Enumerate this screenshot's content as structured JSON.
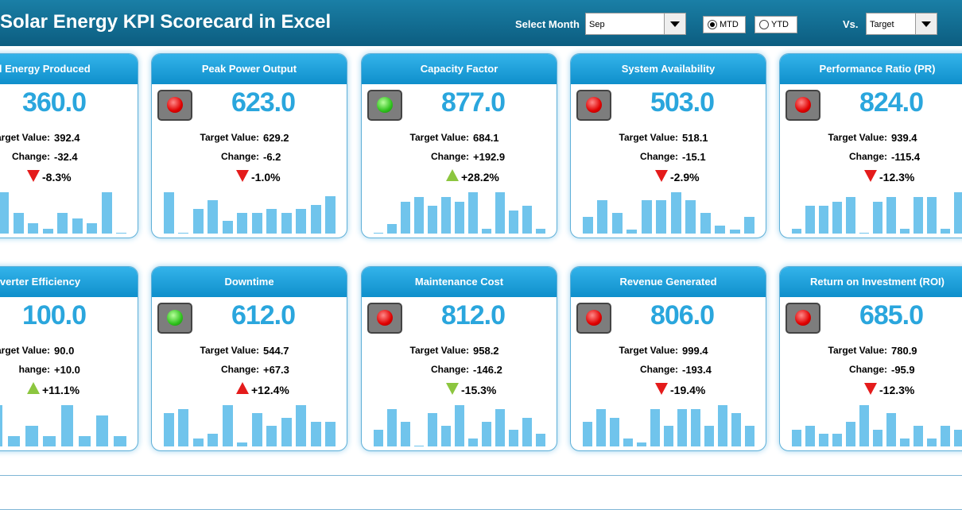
{
  "header": {
    "title": "Solar Energy KPI Scorecard in Excel",
    "month_label": "Select Month",
    "month_value": "Sep",
    "mtd": "MTD",
    "ytd": "YTD",
    "vs_label": "Vs.",
    "vs_value": "Target",
    "selected": "mtd"
  },
  "cards": [
    {
      "title": "tal Energy Produced",
      "light": null,
      "value": "360.0",
      "target_label": "arget Value:",
      "target": "392.4",
      "change_label": "Change:",
      "change": "-32.4",
      "pct": "-8.3%",
      "arrow": "down",
      "arrow_color": "#e41b1b",
      "spark": [
        5,
        8,
        3,
        8,
        4,
        2,
        1,
        4,
        3,
        2,
        8,
        0
      ]
    },
    {
      "title": "Peak Power Output",
      "light": "red",
      "value": "623.0",
      "target_label": "Target Value:",
      "target": "629.2",
      "change_label": "Change:",
      "change": "-6.2",
      "pct": "-1.0%",
      "arrow": "down",
      "arrow_color": "#e41b1b",
      "spark": [
        10,
        0,
        6,
        8,
        3,
        5,
        5,
        6,
        5,
        6,
        7,
        9
      ]
    },
    {
      "title": "Capacity Factor",
      "light": "green",
      "value": "877.0",
      "target_label": "Target Value:",
      "target": "684.1",
      "change_label": "Change:",
      "change": "+192.9",
      "pct": "+28.2%",
      "arrow": "up",
      "arrow_color": "#8cc63f",
      "spark": [
        0,
        2,
        7,
        8,
        6,
        8,
        7,
        9,
        1,
        9,
        5,
        6,
        1
      ]
    },
    {
      "title": "System Availability",
      "light": "red",
      "value": "503.0",
      "target_label": "Target Value:",
      "target": "518.1",
      "change_label": "Change:",
      "change": "-15.1",
      "pct": "-2.9%",
      "arrow": "down",
      "arrow_color": "#e41b1b",
      "spark": [
        4,
        8,
        5,
        1,
        8,
        8,
        10,
        8,
        5,
        2,
        1,
        4
      ]
    },
    {
      "title": "Performance Ratio (PR)",
      "light": "red",
      "value": "824.0",
      "target_label": "Target Value:",
      "target": "939.4",
      "change_label": "Change:",
      "change": "-115.4",
      "pct": "-12.3%",
      "arrow": "down",
      "arrow_color": "#e41b1b",
      "spark": [
        1,
        6,
        6,
        7,
        8,
        0,
        7,
        8,
        1,
        8,
        8,
        1,
        9
      ]
    },
    {
      "title": "verter Efficiency",
      "light": null,
      "value": "100.0",
      "target_label": "arget Value:",
      "target": "90.0",
      "change_label": "hange:",
      "change": "+10.0",
      "pct": "+11.1%",
      "arrow": "up",
      "arrow_color": "#8cc63f",
      "spark": [
        3,
        8,
        8,
        2,
        4,
        2,
        8,
        2,
        6,
        2
      ]
    },
    {
      "title": "Downtime",
      "light": "green",
      "value": "612.0",
      "target_label": "Target Value:",
      "target": "544.7",
      "change_label": "Change:",
      "change": "+67.3",
      "pct": "+12.4%",
      "arrow": "up",
      "arrow_color": "#e41b1b",
      "spark": [
        8,
        9,
        2,
        3,
        10,
        1,
        8,
        5,
        7,
        10,
        6,
        6
      ]
    },
    {
      "title": "Maintenance Cost",
      "light": "red",
      "value": "812.0",
      "target_label": "Target Value:",
      "target": "958.2",
      "change_label": "Change:",
      "change": "-146.2",
      "pct": "-15.3%",
      "arrow": "down",
      "arrow_color": "#8cc63f",
      "spark": [
        4,
        9,
        6,
        0,
        8,
        5,
        10,
        2,
        6,
        9,
        4,
        7,
        3
      ]
    },
    {
      "title": "Revenue Generated",
      "light": "red",
      "value": "806.0",
      "target_label": "Target Value:",
      "target": "999.4",
      "change_label": "Change:",
      "change": "-193.4",
      "pct": "-19.4%",
      "arrow": "down",
      "arrow_color": "#e41b1b",
      "spark": [
        6,
        9,
        7,
        2,
        1,
        9,
        5,
        9,
        9,
        5,
        10,
        8,
        5
      ]
    },
    {
      "title": "Return on Investment (ROI)",
      "light": "red",
      "value": "685.0",
      "target_label": "Target Value:",
      "target": "780.9",
      "change_label": "Change:",
      "change": "-95.9",
      "pct": "-12.3%",
      "arrow": "down",
      "arrow_color": "#e41b1b",
      "spark": [
        4,
        5,
        3,
        3,
        6,
        10,
        4,
        8,
        2,
        5,
        2,
        5,
        4
      ]
    }
  ]
}
